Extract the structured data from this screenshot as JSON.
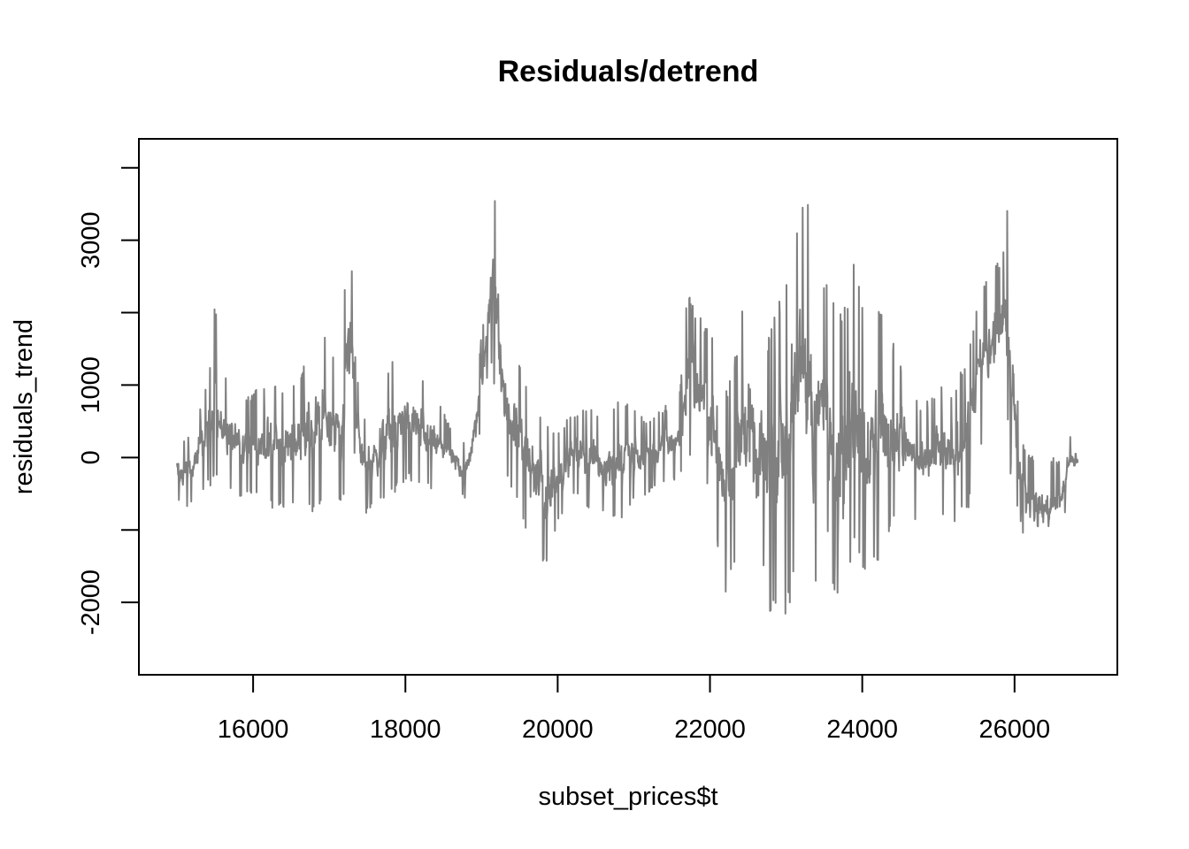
{
  "chart_data": {
    "type": "line",
    "title": "Residuals/detrend",
    "xlabel": "subset_prices$t",
    "ylabel": "residuals_trend",
    "x_ticks": [
      16000,
      18000,
      20000,
      22000,
      24000,
      26000
    ],
    "y_ticks": [
      -2000,
      -1000,
      0,
      1000,
      2000,
      3000,
      4000
    ],
    "y_tick_labels": [
      "-2000",
      "",
      "0",
      "1000",
      "",
      "3000",
      ""
    ],
    "xlim": [
      14500,
      27350
    ],
    "ylim": [
      -3000,
      4400
    ],
    "x_range": [
      15000,
      26830
    ],
    "line_color": "#808080",
    "grid": false,
    "series": [
      {
        "x": [
          15000,
          15150,
          15300,
          15450,
          15500,
          15550,
          15700,
          15850,
          16000,
          16200,
          16400,
          16600,
          16800,
          17000,
          17150,
          17250,
          17300,
          17350,
          17450,
          17600,
          17800,
          18000,
          18200,
          18400,
          18600,
          18800,
          18900,
          19000,
          19050,
          19100,
          19150,
          19200,
          19300,
          19500,
          19700,
          19850,
          20000,
          20200,
          20400,
          20600,
          20800,
          21000,
          21200,
          21400,
          21600,
          21700,
          21800,
          21950,
          22100,
          22200,
          22300,
          22400,
          22500,
          22600,
          22700,
          22800,
          22900,
          23000,
          23100,
          23200,
          23300,
          23350,
          23450,
          23550,
          23650,
          23750,
          23900,
          24050,
          24200,
          24400,
          24600,
          24800,
          25000,
          25200,
          25400,
          25550,
          25700,
          25850,
          25900,
          25950,
          26050,
          26150,
          26300,
          26450,
          26600,
          26700,
          26830
        ],
        "lo": [
          -600,
          -700,
          -500,
          -400,
          -200,
          -300,
          -500,
          -600,
          -500,
          -700,
          -700,
          -600,
          -800,
          -500,
          -700,
          -200,
          500,
          -300,
          -800,
          -700,
          -600,
          -300,
          -400,
          -500,
          -400,
          -600,
          -200,
          400,
          1000,
          1200,
          1200,
          400,
          -200,
          -800,
          -1300,
          -1600,
          -900,
          -500,
          -700,
          -800,
          -900,
          -600,
          -500,
          -400,
          -300,
          -100,
          -200,
          -400,
          -1200,
          -2100,
          -1500,
          -1400,
          -1600,
          -1800,
          -1500,
          -2400,
          -1800,
          -2200,
          -1900,
          -1000,
          -1600,
          -2800,
          -800,
          -1300,
          -2000,
          -2400,
          -1200,
          -1700,
          -1600,
          -900,
          -800,
          -1000,
          -800,
          -900,
          -700,
          100,
          400,
          700,
          600,
          -300,
          -800,
          -1300,
          -1400,
          -1400,
          -1300,
          -500,
          -400
        ],
        "hi": [
          200,
          300,
          700,
          1400,
          2300,
          1200,
          1100,
          800,
          900,
          1100,
          1000,
          1100,
          1800,
          1600,
          1300,
          3400,
          2700,
          1200,
          600,
          800,
          1300,
          1500,
          1200,
          900,
          400,
          200,
          800,
          1700,
          2000,
          2800,
          4100,
          3400,
          1700,
          1300,
          800,
          500,
          400,
          600,
          700,
          600,
          800,
          700,
          500,
          700,
          900,
          2300,
          2100,
          1800,
          1600,
          1000,
          1200,
          1900,
          2700,
          1400,
          1600,
          1800,
          2200,
          2700,
          3200,
          3800,
          3700,
          2900,
          2500,
          2400,
          2200,
          2000,
          2900,
          2000,
          2300,
          1600,
          1100,
          700,
          1000,
          900,
          1500,
          2500,
          2600,
          2800,
          3500,
          3000,
          600,
          100,
          0,
          0,
          0,
          300,
          400
        ]
      }
    ]
  }
}
